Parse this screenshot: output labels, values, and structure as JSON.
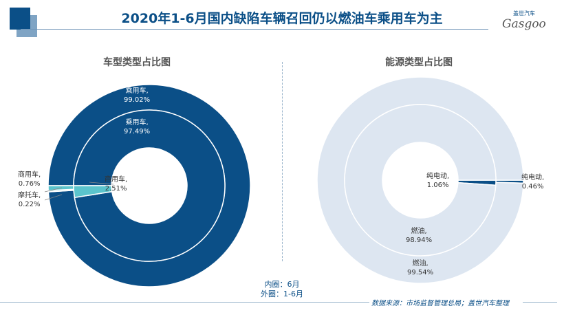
{
  "header": {
    "title": "2020年1-6月国内缺陷车辆召回仍以燃油车乘用车为主",
    "logo_text": "Gasgoo",
    "logo_cn": "盖世汽车",
    "watermark": "盖世汽车 Gasgoo"
  },
  "legend_note": {
    "inner": "内圈：6月",
    "outer": "外圈：1-6月"
  },
  "source": "数据来源：市场监督管理总局；盖世汽车整理",
  "colors": {
    "passenger": "#0b4f87",
    "commercial": "#5bc4cc",
    "fuel": "#dde6f1",
    "electric": "#0b4f87"
  },
  "chart_data": [
    {
      "type": "pie",
      "title": "车型类型占比图",
      "inner": {
        "label": "6月",
        "slices": [
          {
            "name": "乘用车",
            "value": 97.49,
            "label": "97.49%"
          },
          {
            "name": "商用车",
            "value": 2.51,
            "label": "2.51%"
          }
        ]
      },
      "outer": {
        "label": "1-6月",
        "slices": [
          {
            "name": "乘用车",
            "value": 99.02,
            "label": "99.02%"
          },
          {
            "name": "摩托车",
            "value": 0.22,
            "label": "0.22%"
          },
          {
            "name": "商用车",
            "value": 0.76,
            "label": "0.76%"
          }
        ]
      }
    },
    {
      "type": "pie",
      "title": "能源类型占比图",
      "inner": {
        "label": "6月",
        "slices": [
          {
            "name": "纯电动",
            "value": 1.06,
            "label": "1.06%"
          },
          {
            "name": "燃油",
            "value": 98.94,
            "label": "98.94%"
          }
        ]
      },
      "outer": {
        "label": "1-6月",
        "slices": [
          {
            "name": "纯电动",
            "value": 0.46,
            "label": "0.46%"
          },
          {
            "name": "燃油",
            "value": 99.54,
            "label": "99.54%"
          }
        ]
      }
    }
  ]
}
